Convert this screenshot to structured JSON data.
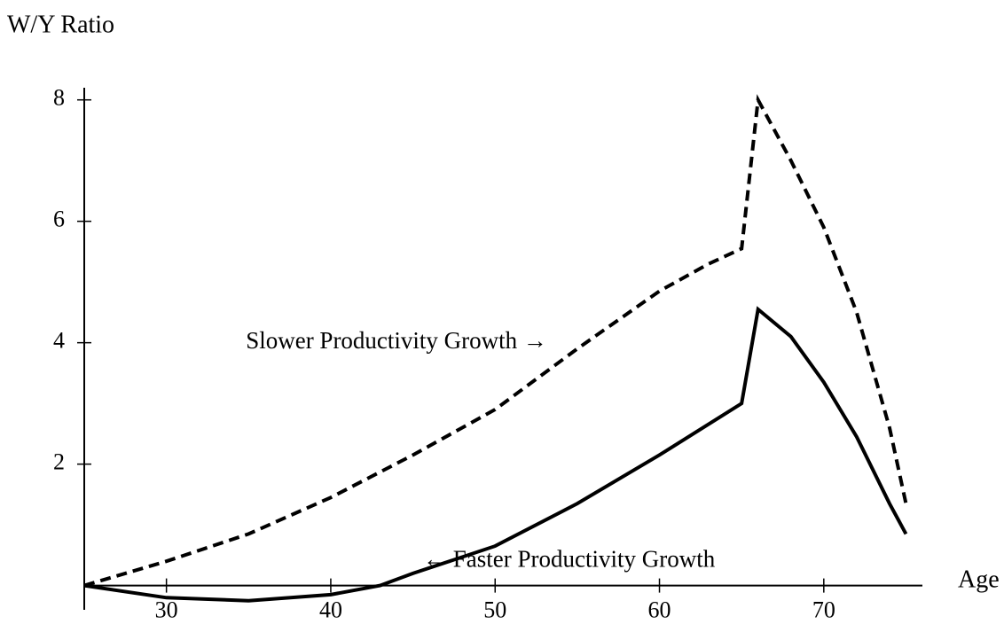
{
  "chart_data": {
    "type": "line",
    "y_label": "W/Y Ratio",
    "x_label": "Age",
    "annotations": [
      {
        "text": "Slower Productivity Growth →",
        "x": 44,
        "y": 4
      },
      {
        "text": "← Faster Productivity Growth",
        "x": 54.5,
        "y": 0.4
      }
    ],
    "series": [
      {
        "style": "dashed",
        "color": "#000000",
        "x": [
          25,
          30,
          35,
          40,
          45,
          50,
          55,
          60,
          63,
          65,
          66,
          68,
          70,
          72,
          74,
          75
        ],
        "values": [
          0,
          0.4,
          0.85,
          1.45,
          2.15,
          2.9,
          3.9,
          4.85,
          5.3,
          5.55,
          8.0,
          7.0,
          5.9,
          4.5,
          2.6,
          1.35
        ]
      },
      {
        "style": "solid",
        "color": "#000000",
        "x": [
          25,
          30,
          35,
          40,
          43,
          45,
          50,
          55,
          60,
          65,
          66,
          68,
          70,
          72,
          74,
          75
        ],
        "values": [
          0,
          -0.2,
          -0.25,
          -0.15,
          0,
          0.2,
          0.65,
          1.35,
          2.15,
          3.0,
          4.55,
          4.1,
          3.35,
          2.45,
          1.35,
          0.85
        ]
      }
    ],
    "xlim": [
      25,
      76
    ],
    "ylim": [
      -0.4,
      8.2
    ],
    "xticks": [
      30,
      40,
      50,
      60,
      70
    ],
    "yticks": [
      2,
      4,
      6,
      8
    ],
    "grid": false
  }
}
